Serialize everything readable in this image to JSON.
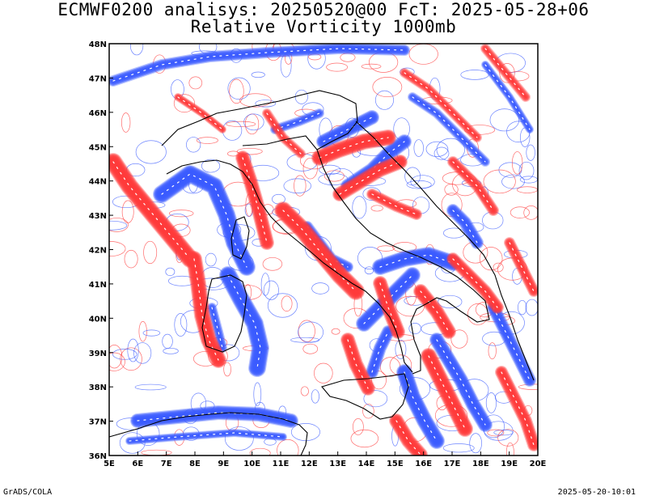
{
  "header": {
    "title_line1": "ECMWF0200 analisys: 20250520@00 FcT: 2025-05-28+06",
    "title_line2": "Relative Vorticity 1000mb"
  },
  "map": {
    "lon_range": [
      5,
      20
    ],
    "lat_range": [
      36,
      48
    ],
    "lon_ticks": [
      "5E",
      "6E",
      "7E",
      "8E",
      "9E",
      "10E",
      "11E",
      "12E",
      "13E",
      "14E",
      "15E",
      "16E",
      "17E",
      "18E",
      "19E",
      "20E"
    ],
    "lat_ticks": [
      "36N",
      "37N",
      "38N",
      "39N",
      "40N",
      "41N",
      "42N",
      "43N",
      "44N",
      "45N",
      "46N",
      "47N",
      "48N"
    ],
    "colors": {
      "positive_vorticity": "#ff3b3b",
      "negative_vorticity": "#3b5bff",
      "coastline": "#000000",
      "frame": "#000000"
    }
  },
  "footer": {
    "left": "GrADS/COLA",
    "right": "2025-05-20-10:01"
  }
}
